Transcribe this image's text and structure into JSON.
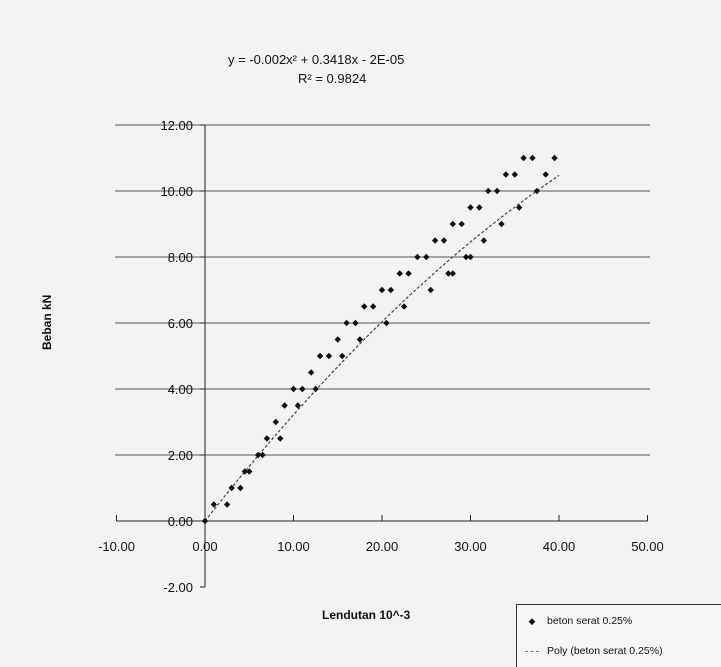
{
  "chart_data": {
    "type": "scatter",
    "equation": "y = -0.002x² + 0.3418x - 2E-05",
    "r_squared": "R² = 0.9824",
    "xlabel": "Lendutan 10^-3",
    "ylabel": "Beban kN",
    "xlim": [
      -10,
      50
    ],
    "ylim": [
      -2,
      12
    ],
    "x_ticks": [
      "-10.00",
      "0.00",
      "10.00",
      "20.00",
      "30.00",
      "40.00",
      "50.00"
    ],
    "y_ticks": [
      "-2.00",
      "0.00",
      "2.00",
      "4.00",
      "6.00",
      "8.00",
      "10.00",
      "12.00"
    ],
    "gridlines": "horizontal",
    "legend_position": "bottom-right",
    "series": [
      {
        "name": "beton serat 0.25%",
        "marker": "diamond",
        "color": "#111111",
        "points": [
          [
            0,
            0
          ],
          [
            1,
            0.5
          ],
          [
            3,
            1
          ],
          [
            4,
            1
          ],
          [
            5,
            1.5
          ],
          [
            6,
            2
          ],
          [
            7,
            2.5
          ],
          [
            8,
            3
          ],
          [
            9,
            3.5
          ],
          [
            10,
            4
          ],
          [
            11,
            4
          ],
          [
            12,
            4.5
          ],
          [
            13,
            5
          ],
          [
            14,
            5
          ],
          [
            15,
            5.5
          ],
          [
            16,
            6
          ],
          [
            17,
            6
          ],
          [
            18,
            6.5
          ],
          [
            19,
            6.5
          ],
          [
            20,
            7
          ],
          [
            21,
            7
          ],
          [
            22,
            7.5
          ],
          [
            23,
            7.5
          ],
          [
            24,
            8
          ],
          [
            25,
            8
          ],
          [
            26,
            8.5
          ],
          [
            27,
            8.5
          ],
          [
            28,
            9
          ],
          [
            29,
            9
          ],
          [
            30,
            9.5
          ],
          [
            31,
            9.5
          ],
          [
            32,
            10
          ],
          [
            33,
            10
          ],
          [
            34,
            10.5
          ],
          [
            35,
            10.5
          ],
          [
            36,
            11
          ],
          [
            37,
            11
          ],
          [
            2.5,
            0.5
          ],
          [
            4.5,
            1.5
          ],
          [
            6.5,
            2
          ],
          [
            8.5,
            2.5
          ],
          [
            10.5,
            3.5
          ],
          [
            12.5,
            4
          ],
          [
            15.5,
            5
          ],
          [
            17.5,
            5.5
          ],
          [
            20.5,
            6
          ],
          [
            22.5,
            6.5
          ],
          [
            25.5,
            7
          ],
          [
            27.5,
            7.5
          ],
          [
            29.5,
            8
          ],
          [
            31.5,
            8.5
          ],
          [
            33.5,
            9
          ],
          [
            35.5,
            9.5
          ],
          [
            37.5,
            10
          ],
          [
            38.5,
            10.5
          ],
          [
            39.5,
            11
          ],
          [
            30,
            8
          ],
          [
            28,
            7.5
          ]
        ]
      },
      {
        "name": "Poly  (beton serat 0.25%)",
        "style": "dotted-line",
        "color": "#444444"
      }
    ],
    "legend": [
      "beton serat 0.25%",
      "Poly  (beton serat 0.25%)"
    ]
  }
}
